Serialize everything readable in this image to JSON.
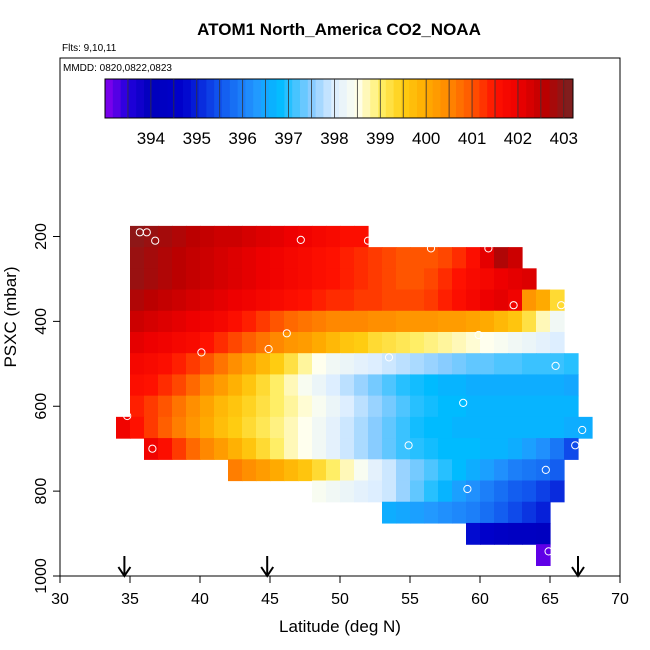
{
  "chart_data": {
    "type": "heatmap",
    "title": "ATOM1 North_America CO2_NOAA",
    "flights_label": "Flts: 9,10,11",
    "date_label": "MMDD: 0820,0822,0823",
    "xlabel": "Latitude (deg N)",
    "ylabel": "PSXC (mbar)",
    "xlim": [
      30,
      70
    ],
    "ylim": [
      1000,
      100
    ],
    "x_ticks": [
      30,
      35,
      40,
      45,
      50,
      55,
      60,
      65,
      70
    ],
    "y_ticks": [
      200,
      400,
      600,
      800,
      1000
    ],
    "x_tick_labels": [
      "30",
      "35",
      "40",
      "45",
      "50",
      "55",
      "60",
      "65",
      "70"
    ],
    "y_tick_labels": [
      "200",
      "400",
      "600",
      "800",
      "1000"
    ],
    "y_reversed": true,
    "grid": false,
    "colorbar": {
      "position": "top",
      "range": [
        393,
        403.2
      ],
      "ticks": [
        394,
        395,
        396,
        397,
        398,
        399,
        400,
        401,
        402,
        403
      ],
      "tick_labels": [
        "394",
        "395",
        "396",
        "397",
        "398",
        "399",
        "400",
        "401",
        "402",
        "403"
      ],
      "stops": [
        {
          "v": 393.0,
          "c": "#8800ee"
        },
        {
          "v": 393.5,
          "c": "#2200dd"
        },
        {
          "v": 394.0,
          "c": "#0000bb"
        },
        {
          "v": 394.7,
          "c": "#0000cc"
        },
        {
          "v": 395.5,
          "c": "#1155ee"
        },
        {
          "v": 396.3,
          "c": "#2299ff"
        },
        {
          "v": 396.8,
          "c": "#00bbff"
        },
        {
          "v": 397.5,
          "c": "#88ccff"
        },
        {
          "v": 398.0,
          "c": "#ddeeff"
        },
        {
          "v": 398.5,
          "c": "#ffffee"
        },
        {
          "v": 399.0,
          "c": "#ffee66"
        },
        {
          "v": 399.5,
          "c": "#ffcc11"
        },
        {
          "v": 400.0,
          "c": "#ffaa00"
        },
        {
          "v": 400.5,
          "c": "#ff8800"
        },
        {
          "v": 401.0,
          "c": "#ff5500"
        },
        {
          "v": 401.5,
          "c": "#ff1100"
        },
        {
          "v": 402.0,
          "c": "#ee0000"
        },
        {
          "v": 402.6,
          "c": "#bb0000"
        },
        {
          "v": 403.2,
          "c": "#772222"
        }
      ]
    },
    "cell_size": {
      "dlat": 1,
      "dp": 50
    },
    "rows": [
      {
        "p": 200,
        "lat_start": 35,
        "values": [
          403.0,
          402.9,
          402.8,
          402.7,
          402.6,
          402.5,
          402.4,
          402.4,
          402.3,
          402.2,
          402.1,
          402.0,
          401.9,
          401.8,
          401.7,
          401.6,
          401.6
        ]
      },
      {
        "p": 250,
        "lat_start": 35,
        "values": [
          402.9,
          402.8,
          402.7,
          402.6,
          402.5,
          402.4,
          402.3,
          402.2,
          402.1,
          402.0,
          401.9,
          401.8,
          401.7,
          401.6,
          401.5,
          401.4,
          401.3,
          401.2,
          401.1,
          401.0,
          401.0,
          401.0,
          401.1,
          401.3,
          401.6,
          402.1,
          402.7,
          402.4
        ]
      },
      {
        "p": 300,
        "lat_start": 35,
        "values": [
          402.9,
          402.8,
          402.7,
          402.6,
          402.5,
          402.4,
          402.3,
          402.2,
          402.1,
          402.0,
          401.9,
          401.8,
          401.7,
          401.6,
          401.5,
          401.4,
          401.3,
          401.2,
          401.1,
          401.0,
          401.0,
          401.1,
          401.3,
          401.5,
          401.7,
          401.8,
          402.0,
          402.1,
          402.2
        ]
      },
      {
        "p": 350,
        "lat_start": 35,
        "values": [
          402.7,
          402.6,
          402.5,
          402.4,
          402.3,
          402.2,
          402.1,
          402.0,
          401.9,
          401.8,
          401.7,
          401.6,
          401.5,
          401.4,
          401.3,
          401.3,
          401.2,
          401.2,
          401.1,
          401.1,
          401.1,
          401.2,
          401.4,
          401.6,
          401.8,
          402.0,
          402.1,
          401.9,
          400.3,
          400.0,
          399.3
        ]
      },
      {
        "p": 400,
        "lat_start": 35,
        "values": [
          402.4,
          402.3,
          402.2,
          402.1,
          402.0,
          401.9,
          401.8,
          401.6,
          401.4,
          401.2,
          401.0,
          400.8,
          400.7,
          400.6,
          400.5,
          400.5,
          400.5,
          400.4,
          400.4,
          400.3,
          400.3,
          400.3,
          400.2,
          400.2,
          400.1,
          400.0,
          399.8,
          399.6,
          399.2,
          398.7,
          398.3
        ]
      },
      {
        "p": 450,
        "lat_start": 35,
        "values": [
          402.1,
          402.0,
          401.9,
          401.8,
          401.7,
          401.5,
          401.3,
          401.1,
          400.9,
          400.7,
          400.5,
          400.3,
          400.2,
          400.0,
          399.8,
          399.6,
          399.5,
          399.3,
          399.2,
          399.1,
          399.0,
          398.9,
          398.8,
          398.7,
          398.6,
          398.5,
          398.4,
          398.3,
          398.2,
          398.1,
          398.0
        ]
      },
      {
        "p": 500,
        "lat_start": 35,
        "values": [
          401.8,
          401.7,
          401.6,
          401.4,
          401.2,
          401.0,
          400.7,
          400.4,
          400.1,
          399.8,
          399.5,
          399.2,
          398.8,
          398.5,
          398.3,
          398.2,
          398.1,
          398.0,
          397.9,
          397.8,
          397.7,
          397.6,
          397.5,
          397.4,
          397.3,
          397.3,
          397.2,
          397.2,
          397.1,
          397.1,
          397.1,
          397.0
        ]
      },
      {
        "p": 550,
        "lat_start": 35,
        "values": [
          401.6,
          401.5,
          401.3,
          401.1,
          400.8,
          400.5,
          400.2,
          399.9,
          399.6,
          399.3,
          399.0,
          398.7,
          398.4,
          398.2,
          398.0,
          397.8,
          397.6,
          397.4,
          397.2,
          397.0,
          396.9,
          396.8,
          396.7,
          396.7,
          396.6,
          396.6,
          396.6,
          396.6,
          396.6,
          396.6,
          396.6,
          396.5
        ]
      },
      {
        "p": 600,
        "lat_start": 35,
        "values": [
          401.4,
          401.2,
          401.0,
          400.7,
          400.4,
          400.1,
          399.8,
          399.6,
          399.4,
          399.2,
          399.0,
          398.8,
          398.6,
          398.4,
          398.2,
          398.0,
          397.8,
          397.6,
          397.4,
          397.2,
          397.0,
          396.9,
          396.8,
          396.8,
          396.7,
          396.7,
          396.7,
          396.7,
          396.7,
          396.7,
          396.7,
          396.7
        ]
      },
      {
        "p": 650,
        "lat_start": 34,
        "values": [
          401.9,
          401.5,
          401.2,
          400.9,
          400.6,
          400.3,
          400.0,
          399.7,
          399.5,
          399.3,
          399.1,
          398.9,
          398.7,
          398.5,
          398.3,
          398.1,
          397.9,
          397.7,
          397.5,
          397.3,
          397.1,
          396.9,
          396.8,
          396.8,
          396.7,
          396.7,
          396.7,
          396.7,
          396.7,
          396.7,
          396.7,
          396.7,
          396.6,
          396.6
        ]
      },
      {
        "p": 700,
        "lat_start": 36,
        "values": [
          401.9,
          401.6,
          401.2,
          400.8,
          400.5,
          400.2,
          399.9,
          399.6,
          399.3,
          399.0,
          398.7,
          398.5,
          398.3,
          398.1,
          397.9,
          397.7,
          397.5,
          397.3,
          397.1,
          397.0,
          396.9,
          396.8,
          396.8,
          396.8,
          396.7,
          396.7,
          396.6,
          396.4,
          396.2,
          395.9,
          395.4
        ]
      },
      {
        "p": 750,
        "lat_start": 42,
        "values": [
          400.6,
          400.4,
          400.2,
          400.0,
          399.8,
          399.6,
          399.3,
          399.0,
          398.7,
          398.4,
          398.1,
          397.9,
          397.6,
          397.4,
          397.2,
          397.0,
          396.8,
          396.6,
          396.4,
          396.2,
          396.0,
          395.9,
          395.8,
          395.6
        ]
      },
      {
        "p": 800,
        "lat_start": 48,
        "values": [
          398.4,
          398.3,
          398.2,
          398.1,
          398.0,
          397.9,
          397.6,
          397.3,
          397.0,
          396.7,
          396.4,
          396.2,
          396.0,
          395.8,
          395.6,
          395.5,
          395.3,
          395.1
        ]
      },
      {
        "p": 850,
        "lat_start": 53,
        "values": [
          396.6,
          396.5,
          396.4,
          396.3,
          396.2,
          396.1,
          396.0,
          395.8,
          395.6,
          395.4,
          395.2,
          395.0
        ]
      },
      {
        "p": 900,
        "lat_start": 59,
        "values": [
          394.8,
          394.6,
          394.4,
          394.3,
          394.3,
          394.2
        ]
      },
      {
        "p": 950,
        "lat_start": 64,
        "values": [
          393.2
        ]
      }
    ],
    "samples": [
      [
        35.7,
        190
      ],
      [
        36.2,
        190
      ],
      [
        36.8,
        210
      ],
      [
        47.2,
        208
      ],
      [
        52.0,
        210
      ],
      [
        56.5,
        228
      ],
      [
        60.6,
        228
      ],
      [
        62.4,
        362
      ],
      [
        65.8,
        362
      ],
      [
        46.2,
        428
      ],
      [
        59.9,
        432
      ],
      [
        40.1,
        473
      ],
      [
        44.9,
        465
      ],
      [
        53.5,
        485
      ],
      [
        65.4,
        505
      ],
      [
        34.8,
        623
      ],
      [
        58.8,
        592
      ],
      [
        67.3,
        656
      ],
      [
        36.6,
        700
      ],
      [
        54.9,
        692
      ],
      [
        66.8,
        692
      ],
      [
        64.7,
        750
      ],
      [
        59.1,
        795
      ],
      [
        64.9,
        942
      ]
    ],
    "flight_markers_lat": [
      34.6,
      44.8,
      67.0
    ]
  }
}
